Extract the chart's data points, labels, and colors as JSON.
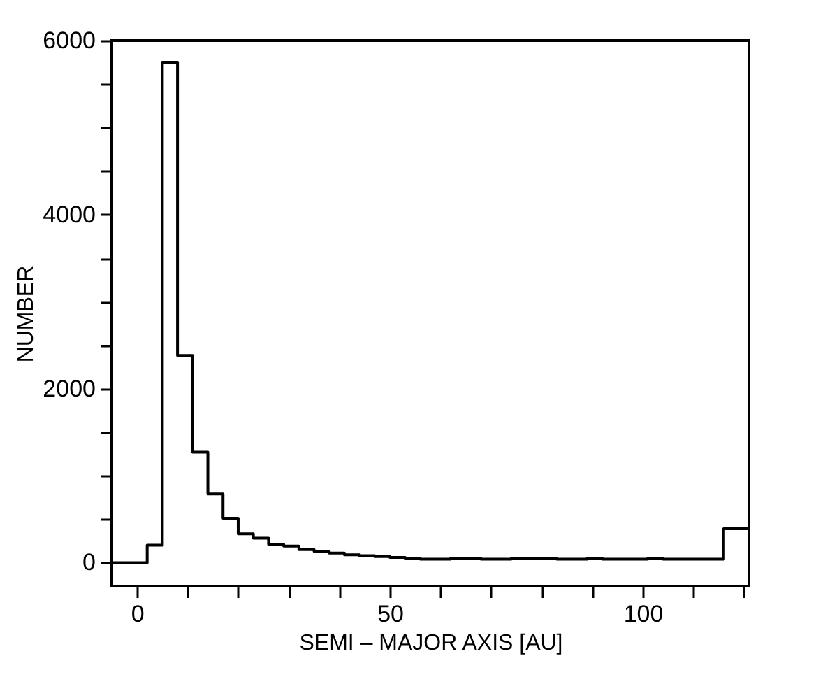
{
  "chart_data": {
    "type": "histogram",
    "xlabel": "SEMI – MAJOR   AXIS  [AU]",
    "ylabel": "NUMBER",
    "bins": [
      -5,
      -1,
      2,
      5,
      8,
      11,
      14,
      17,
      20,
      23,
      26,
      29,
      32,
      35,
      38,
      41,
      44,
      47,
      50,
      53,
      56,
      59,
      62,
      65,
      68,
      71,
      74,
      77,
      80,
      83,
      86,
      89,
      92,
      95,
      98,
      101,
      104,
      107,
      110,
      113,
      116,
      121
    ],
    "values": [
      0,
      0,
      200,
      5750,
      2380,
      1270,
      790,
      510,
      330,
      280,
      210,
      190,
      150,
      130,
      110,
      90,
      80,
      70,
      60,
      50,
      40,
      40,
      50,
      50,
      40,
      40,
      50,
      50,
      50,
      40,
      40,
      50,
      40,
      40,
      40,
      50,
      40,
      40,
      40,
      40,
      390
    ],
    "color": "#000000",
    "xlim": [
      -5,
      121
    ],
    "ylim": [
      -270,
      6000
    ],
    "xticks": [
      0,
      {
        "value": 10,
        "label": null
      },
      {
        "value": 20,
        "label": null
      },
      {
        "value": 30,
        "label": null
      },
      {
        "value": 40,
        "label": null
      },
      50,
      {
        "value": 60,
        "label": null
      },
      {
        "value": 70,
        "label": null
      },
      {
        "value": 80,
        "label": null
      },
      {
        "value": 90,
        "label": null
      },
      100,
      {
        "value": 110,
        "label": null
      },
      {
        "value": 120,
        "label": null
      }
    ],
    "yticks": [
      0,
      {
        "value": 500,
        "label": null
      },
      {
        "value": 1000,
        "label": null
      },
      {
        "value": 1500,
        "label": null
      },
      2000,
      {
        "value": 2500,
        "label": null
      },
      {
        "value": 3000,
        "label": null
      },
      {
        "value": 3500,
        "label": null
      },
      4000,
      {
        "value": 4500,
        "label": null
      },
      {
        "value": 5000,
        "label": null
      },
      {
        "value": 5500,
        "label": null
      },
      6000
    ],
    "grid": false
  }
}
